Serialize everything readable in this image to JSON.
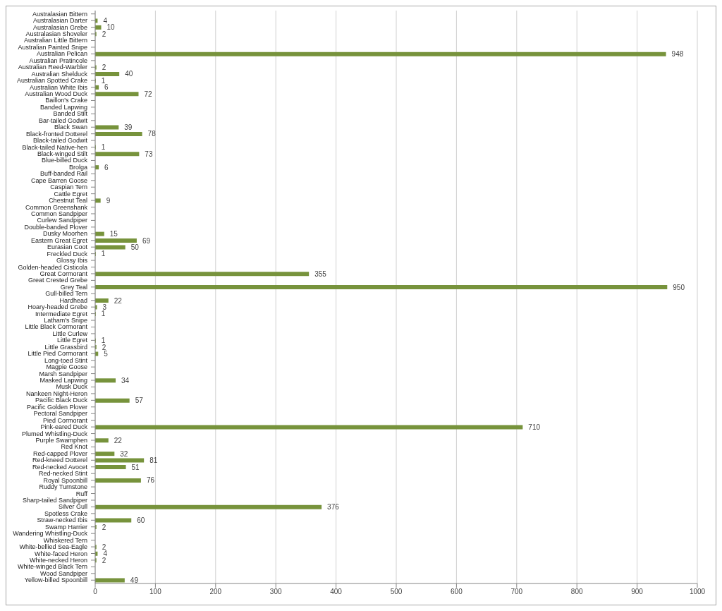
{
  "chart_data": {
    "type": "bar",
    "orientation": "horizontal",
    "categories": [
      "Australasian Bittern",
      "Australasian Darter",
      "Australasian Grebe",
      "Australasian Shoveler",
      "Australian Little Bittern",
      "Australian Painted Snipe",
      "Australian Pelican",
      "Australian Pratincole",
      "Australian Reed-Warbler",
      "Australian Shelduck",
      "Australian Spotted Crake",
      "Australian White Ibis",
      "Australian Wood Duck",
      "Baillon's Crake",
      "Banded Lapwing",
      "Banded Stilt",
      "Bar-tailed Godwit",
      "Black Swan",
      "Black-fronted Dotterel",
      "Black-tailed Godwit",
      "Black-tailed Native-hen",
      "Black-winged Stilt",
      "Blue-billed Duck",
      "Brolga",
      "Buff-banded Rail",
      "Cape Barren Goose",
      "Caspian Tern",
      "Cattle Egret",
      "Chestnut Teal",
      "Common Greenshank",
      "Common Sandpiper",
      "Curlew Sandpiper",
      "Double-banded Plover",
      "Dusky Moorhen",
      "Eastern Great Egret",
      "Eurasian Coot",
      "Freckled Duck",
      "Glossy Ibis",
      "Golden-headed Cisticola",
      "Great Cormorant",
      "Great Crested Grebe",
      "Grey Teal",
      "Gull-billed Tern",
      "Hardhead",
      "Hoary-headed Grebe",
      "Intermediate Egret",
      "Latham's Snipe",
      "Little Black Cormorant",
      "Little Curlew",
      "Little Egret",
      "Little Grassbird",
      "Little Pied Cormorant",
      "Long-toed Stint",
      "Magpie Goose",
      "Marsh Sandpiper",
      "Masked Lapwing",
      "Musk Duck",
      "Nankeen Night-Heron",
      "Pacific Black Duck",
      "Pacific Golden Plover",
      "Pectoral Sandpiper",
      "Pied Cormorant",
      "Pink-eared Duck",
      "Plumed Whistling-Duck",
      "Purple Swamphen",
      "Red Knot",
      "Red-capped Plover",
      "Red-kneed Dotterel",
      "Red-necked Avocet",
      "Red-necked Stint",
      "Royal Spoonbill",
      "Ruddy Turnstone",
      "Ruff",
      "Sharp-tailed Sandpiper",
      "Silver Gull",
      "Spotless Crake",
      "Straw-necked Ibis",
      "Swamp Harrier",
      "Wandering Whistling-Duck",
      "Whiskered Tern",
      "White-bellied Sea-Eagle",
      "White-faced Heron",
      "White-necked Heron",
      "White-winged Black Tern",
      "Wood Sandpiper",
      "Yellow-billed Spoonbill"
    ],
    "values": [
      null,
      4,
      10,
      2,
      null,
      null,
      948,
      null,
      2,
      40,
      1,
      6,
      72,
      null,
      null,
      null,
      null,
      39,
      78,
      null,
      1,
      73,
      null,
      6,
      null,
      null,
      null,
      null,
      9,
      null,
      null,
      null,
      null,
      15,
      69,
      50,
      1,
      null,
      null,
      355,
      null,
      950,
      null,
      22,
      3,
      1,
      null,
      null,
      null,
      1,
      2,
      5,
      null,
      null,
      null,
      34,
      null,
      null,
      57,
      null,
      null,
      null,
      710,
      null,
      22,
      null,
      32,
      81,
      51,
      null,
      76,
      null,
      null,
      null,
      376,
      null,
      60,
      2,
      null,
      null,
      2,
      4,
      2,
      null,
      null,
      49
    ],
    "color": "#77933c",
    "xlim": [
      0,
      1000
    ],
    "xticks": [
      0,
      100,
      200,
      300,
      400,
      500,
      600,
      700,
      800,
      900,
      1000
    ],
    "grid": "x",
    "data_labels": true
  }
}
